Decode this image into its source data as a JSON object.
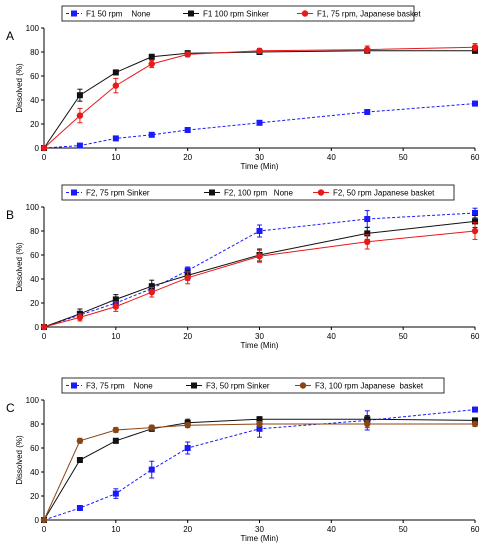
{
  "chart_data": [
    {
      "type": "line",
      "panel_label": "A",
      "xlabel": "Time (Min)",
      "ylabel": "Dissolved (%)",
      "xlim": [
        0,
        60
      ],
      "ylim": [
        0,
        100
      ],
      "xticks": [
        0,
        10,
        20,
        30,
        40,
        50,
        60
      ],
      "yticks": [
        0,
        20,
        40,
        60,
        80,
        100
      ],
      "legend_position": "top",
      "series": [
        {
          "name": "F1 50 rpm    None",
          "marker": "square",
          "color": "#1a1aff",
          "dashed": true,
          "x": [
            0,
            5,
            10,
            15,
            20,
            30,
            45,
            60
          ],
          "y": [
            0,
            2,
            8,
            11,
            15,
            21,
            30,
            37
          ],
          "err": [
            0,
            1,
            1,
            1,
            1,
            1,
            1,
            2
          ]
        },
        {
          "name": "F1 100 rpm Sinker",
          "marker": "square",
          "color": "#111111",
          "dashed": false,
          "x": [
            0,
            5,
            10,
            15,
            20,
            30,
            45,
            60
          ],
          "y": [
            0,
            44,
            63,
            76,
            79,
            80,
            81,
            81
          ],
          "err": [
            0,
            5,
            2,
            2,
            2,
            2,
            2,
            2
          ]
        },
        {
          "name": "F1, 75 rpm, Japanese basket",
          "marker": "circle",
          "color": "#e81919",
          "dashed": false,
          "x": [
            0,
            5,
            10,
            15,
            20,
            30,
            45,
            60
          ],
          "y": [
            0,
            27,
            52,
            70,
            78,
            81,
            82,
            84
          ],
          "err": [
            0,
            6,
            6,
            3,
            2,
            2,
            3,
            3
          ]
        }
      ]
    },
    {
      "type": "line",
      "panel_label": "B",
      "xlabel": "Time (Min)",
      "ylabel": "Dissolved (%)",
      "xlim": [
        0,
        60
      ],
      "ylim": [
        0,
        100
      ],
      "xticks": [
        0,
        10,
        20,
        30,
        40,
        50,
        60
      ],
      "yticks": [
        0,
        20,
        40,
        60,
        80,
        100
      ],
      "legend_position": "top",
      "series": [
        {
          "name": "F2, 75 rpm Sinker",
          "marker": "square",
          "color": "#1a1aff",
          "dashed": true,
          "x": [
            0,
            5,
            10,
            15,
            20,
            30,
            45,
            60
          ],
          "y": [
            0,
            10,
            20,
            32,
            47,
            80,
            90,
            95
          ],
          "err": [
            0,
            3,
            3,
            4,
            3,
            5,
            7,
            4
          ]
        },
        {
          "name": "F2, 100 rpm   None",
          "marker": "square",
          "color": "#111111",
          "dashed": false,
          "x": [
            0,
            5,
            10,
            15,
            20,
            30,
            45,
            60
          ],
          "y": [
            0,
            11,
            23,
            34,
            43,
            60,
            78,
            88
          ],
          "err": [
            0,
            4,
            4,
            5,
            4,
            5,
            5,
            5
          ]
        },
        {
          "name": "F2, 50 rpm Japanese basket",
          "marker": "circle",
          "color": "#e81919",
          "dashed": false,
          "x": [
            0,
            5,
            10,
            15,
            20,
            30,
            45,
            60
          ],
          "y": [
            0,
            8,
            17,
            29,
            41,
            59,
            71,
            80
          ],
          "err": [
            0,
            3,
            4,
            4,
            5,
            5,
            6,
            7
          ]
        }
      ]
    },
    {
      "type": "line",
      "panel_label": "C",
      "xlabel": "Time (Min)",
      "ylabel": "Dissolved (%)",
      "xlim": [
        0,
        60
      ],
      "ylim": [
        0,
        100
      ],
      "xticks": [
        0,
        10,
        20,
        30,
        40,
        50,
        60
      ],
      "yticks": [
        0,
        20,
        40,
        60,
        80,
        100
      ],
      "legend_position": "top",
      "series": [
        {
          "name": "F3, 75 rpm    None",
          "marker": "square",
          "color": "#1a1aff",
          "dashed": true,
          "x": [
            0,
            5,
            10,
            15,
            20,
            30,
            45,
            60
          ],
          "y": [
            0,
            10,
            22,
            42,
            60,
            76,
            83,
            92
          ],
          "err": [
            0,
            1,
            4,
            7,
            5,
            7,
            8,
            2
          ]
        },
        {
          "name": "F3, 50 rpm Sinker",
          "marker": "square",
          "color": "#111111",
          "dashed": false,
          "x": [
            0,
            5,
            10,
            15,
            20,
            30,
            45,
            60
          ],
          "y": [
            0,
            50,
            66,
            76,
            81,
            84,
            84,
            83
          ],
          "err": [
            0,
            2,
            2,
            2,
            3,
            2,
            3,
            2
          ]
        },
        {
          "name": "F3, 100 rpm Japanese  basket",
          "marker": "circle",
          "color": "#8b4513",
          "dashed": false,
          "x": [
            0,
            5,
            10,
            15,
            20,
            30,
            45,
            60
          ],
          "y": [
            0,
            66,
            75,
            77,
            79,
            80,
            80,
            80
          ],
          "err": [
            0,
            2,
            2,
            2,
            2,
            2,
            3,
            2
          ]
        }
      ]
    }
  ]
}
